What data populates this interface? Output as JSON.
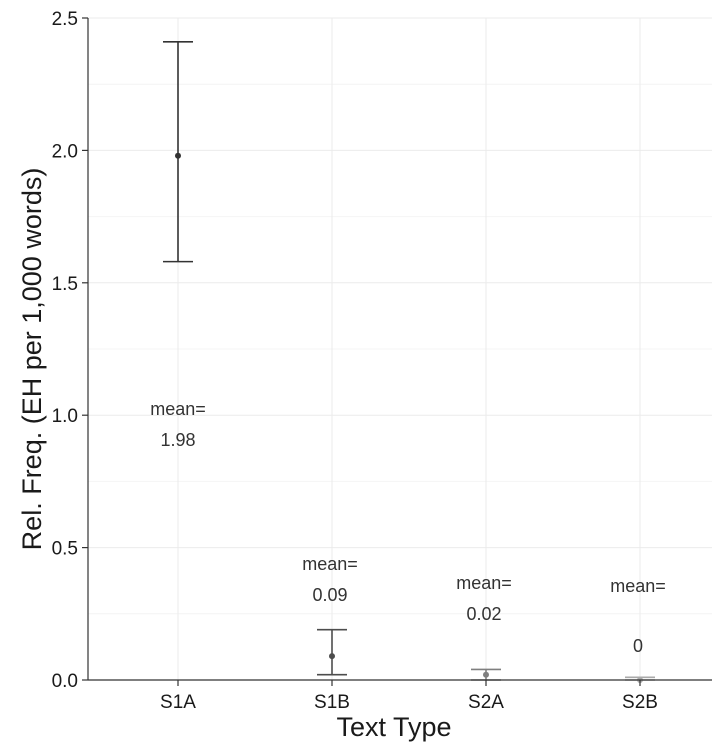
{
  "chart_data": {
    "type": "errorbar",
    "xlabel": "Text Type",
    "ylabel": "Rel. Freq. (EH per 1,000 words)",
    "categories": [
      "S1A",
      "S1B",
      "S2A",
      "S2B"
    ],
    "mean": [
      1.98,
      0.09,
      0.02,
      0.0
    ],
    "lower": [
      1.58,
      0.02,
      0.0,
      0.0
    ],
    "upper": [
      2.41,
      0.19,
      0.04,
      0.01
    ],
    "annotations": [
      {
        "line1": "mean=",
        "line2": "1.98"
      },
      {
        "line1": "mean=",
        "line2": "0.09"
      },
      {
        "line1": "mean=",
        "line2": "0.02"
      },
      {
        "line1": "mean=",
        "line2": "0"
      }
    ],
    "ylim": [
      0,
      2.5
    ],
    "yticks": [
      "0.0",
      "0.5",
      "1.0",
      "1.5",
      "2.0",
      "2.5"
    ],
    "grid": true,
    "colors": {
      "series": [
        "#333333",
        "#4d4d4d",
        "#7f7f7f",
        "#aaaaaa"
      ],
      "grid": "#ebebeb",
      "axis": "#333333"
    }
  }
}
